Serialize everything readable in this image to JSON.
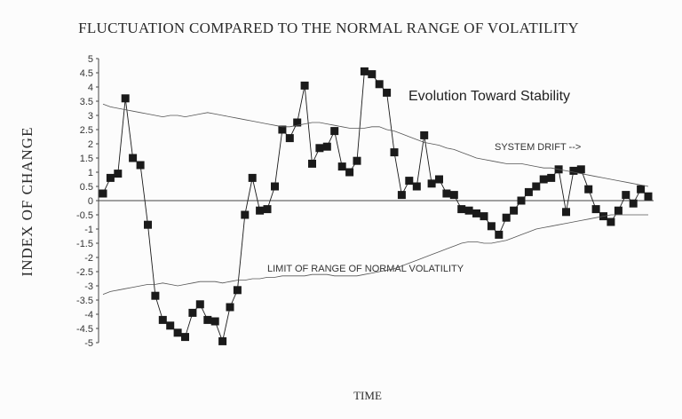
{
  "chart_data": {
    "type": "line",
    "title": "FLUCTUATION COMPARED TO THE NORMAL RANGE OF VOLATILITY",
    "xlabel": "TIME",
    "ylabel": "INDEX OF CHANGE",
    "ylim": [
      -5,
      5
    ],
    "yticks": [
      "5",
      "4.5",
      "4",
      "3.5",
      "3",
      "2.5",
      "2",
      "1.5",
      "1",
      "0.5",
      "0",
      "-0.5",
      "-1",
      "-1.5",
      "-2",
      "-2.5",
      "-3",
      "-3.5",
      "-4",
      "-4.5",
      "-5"
    ],
    "grid": false,
    "legend": "none",
    "annotations": {
      "evolution": "Evolution Toward Stability",
      "drift": "SYSTEM DRIFT -->",
      "limit": "LIMIT OF RANGE OF NORMAL VOLATILITY"
    },
    "series": [
      {
        "style": "line-with-square-markers",
        "color": "#1a1a1a",
        "values": [
          0.25,
          0.8,
          0.95,
          3.6,
          1.5,
          1.25,
          -0.85,
          -3.35,
          -4.2,
          -4.4,
          -4.65,
          -4.8,
          -3.95,
          -3.65,
          -4.2,
          -4.25,
          -4.95,
          -3.75,
          -3.15,
          -0.5,
          0.8,
          -0.35,
          -0.3,
          0.5,
          2.5,
          2.2,
          2.75,
          4.05,
          1.3,
          1.85,
          1.9,
          2.45,
          1.2,
          1.0,
          1.4,
          4.55,
          4.45,
          4.1,
          3.8,
          1.7,
          0.2,
          0.7,
          0.5,
          2.3,
          0.6,
          0.75,
          0.25,
          0.2,
          -0.3,
          -0.35,
          -0.45,
          -0.55,
          -0.9,
          -1.2,
          -0.6,
          -0.35,
          0.0,
          0.3,
          0.5,
          0.75,
          0.8,
          1.1,
          -0.4,
          1.05,
          1.1,
          0.4,
          -0.3,
          -0.55,
          -0.75,
          -0.35,
          0.2,
          -0.1,
          0.4,
          0.15
        ]
      },
      {
        "style": "thin-line",
        "color": "#555555",
        "values": [
          3.4,
          3.3,
          3.25,
          3.2,
          3.15,
          3.1,
          3.05,
          3.0,
          2.95,
          3.0,
          3.0,
          2.95,
          3.0,
          3.05,
          3.1,
          3.05,
          3.0,
          2.95,
          2.9,
          2.85,
          2.8,
          2.75,
          2.7,
          2.65,
          2.6,
          2.6,
          2.65,
          2.7,
          2.75,
          2.75,
          2.7,
          2.65,
          2.6,
          2.55,
          2.55,
          2.55,
          2.6,
          2.6,
          2.5,
          2.45,
          2.35,
          2.25,
          2.15,
          2.05,
          2.0,
          1.95,
          1.85,
          1.8,
          1.7,
          1.6,
          1.5,
          1.45,
          1.4,
          1.35,
          1.3,
          1.3,
          1.3,
          1.25,
          1.2,
          1.15,
          1.15,
          1.1,
          1.05,
          1.0,
          0.95,
          0.9,
          0.85,
          0.8,
          0.75,
          0.7,
          0.65,
          0.6,
          0.55,
          0.5
        ]
      },
      {
        "style": "thin-line",
        "color": "#555555",
        "values": [
          -3.3,
          -3.2,
          -3.15,
          -3.1,
          -3.05,
          -3.0,
          -2.95,
          -2.95,
          -2.9,
          -2.95,
          -3.0,
          -2.95,
          -2.9,
          -2.85,
          -2.85,
          -2.85,
          -2.9,
          -2.85,
          -2.8,
          -2.8,
          -2.75,
          -2.75,
          -2.7,
          -2.7,
          -2.65,
          -2.65,
          -2.65,
          -2.65,
          -2.6,
          -2.6,
          -2.6,
          -2.65,
          -2.65,
          -2.65,
          -2.65,
          -2.6,
          -2.55,
          -2.5,
          -2.45,
          -2.4,
          -2.3,
          -2.2,
          -2.1,
          -2.0,
          -1.9,
          -1.8,
          -1.7,
          -1.6,
          -1.5,
          -1.45,
          -1.45,
          -1.5,
          -1.5,
          -1.45,
          -1.4,
          -1.3,
          -1.2,
          -1.1,
          -1.0,
          -0.95,
          -0.9,
          -0.85,
          -0.8,
          -0.75,
          -0.7,
          -0.65,
          -0.6,
          -0.55,
          -0.5,
          -0.5,
          -0.5,
          -0.5,
          -0.5,
          -0.5
        ]
      }
    ]
  }
}
